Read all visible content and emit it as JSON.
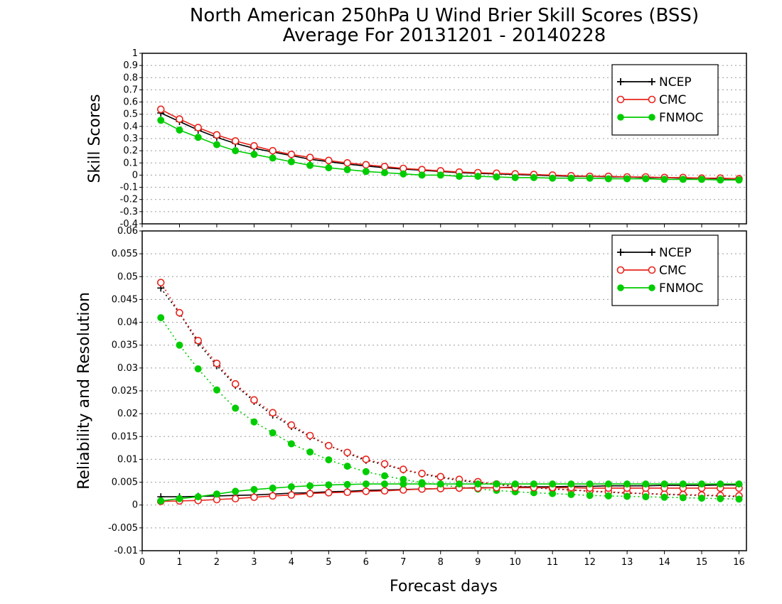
{
  "title_line1": "North American 250hPa U Wind Brier Skill Scores (BSS)",
  "title_line2": "Average For 20131201 - 20140228",
  "xlabel": "Forecast days",
  "x_ticks": [
    "0",
    "1",
    "2",
    "3",
    "4",
    "5",
    "6",
    "7",
    "8",
    "9",
    "10",
    "11",
    "12",
    "13",
    "14",
    "15",
    "16"
  ],
  "colors": {
    "NCEP": "#000000",
    "CMC": "#e8241c",
    "FNMOC": "#00cc00"
  },
  "chart_data": [
    {
      "type": "line",
      "ylabel": "Skill Scores",
      "xlim": [
        0,
        16.2
      ],
      "ylim": [
        -0.4,
        1
      ],
      "y_ticks": [
        "-0.4",
        "-0.3",
        "-0.2",
        "-0.1",
        "0",
        "0.1",
        "0.2",
        "0.3",
        "0.4",
        "0.5",
        "0.6",
        "0.7",
        "0.8",
        "0.9",
        "1"
      ],
      "grid": true,
      "legend_position": "top-right",
      "legend": [
        "NCEP",
        "CMC",
        "FNMOC"
      ],
      "x": [
        0.5,
        1,
        1.5,
        2,
        2.5,
        3,
        3.5,
        4,
        4.5,
        5,
        5.5,
        6,
        6.5,
        7,
        7.5,
        8,
        8.5,
        9,
        9.5,
        10,
        10.5,
        11,
        11.5,
        12,
        12.5,
        13,
        13.5,
        14,
        14.5,
        15,
        15.5,
        16
      ],
      "series": [
        {
          "name": "NCEP",
          "marker": "plus",
          "values": [
            0.51,
            0.44,
            0.37,
            0.31,
            0.26,
            0.22,
            0.19,
            0.16,
            0.13,
            0.11,
            0.09,
            0.075,
            0.06,
            0.05,
            0.04,
            0.03,
            0.02,
            0.015,
            0.01,
            0.005,
            0,
            -0.005,
            -0.01,
            -0.01,
            -0.015,
            -0.015,
            -0.02,
            -0.02,
            -0.025,
            -0.025,
            -0.03,
            -0.03
          ]
        },
        {
          "name": "CMC",
          "marker": "open-circle",
          "values": [
            0.54,
            0.46,
            0.39,
            0.33,
            0.28,
            0.24,
            0.2,
            0.17,
            0.145,
            0.12,
            0.1,
            0.085,
            0.07,
            0.055,
            0.045,
            0.035,
            0.025,
            0.02,
            0.015,
            0.01,
            0.005,
            0,
            -0.005,
            -0.01,
            -0.01,
            -0.015,
            -0.015,
            -0.02,
            -0.02,
            -0.025,
            -0.025,
            -0.03
          ]
        },
        {
          "name": "FNMOC",
          "marker": "filled-circle",
          "values": [
            0.45,
            0.37,
            0.31,
            0.25,
            0.2,
            0.17,
            0.14,
            0.11,
            0.08,
            0.06,
            0.045,
            0.03,
            0.02,
            0.01,
            0,
            0,
            -0.01,
            -0.01,
            -0.015,
            -0.02,
            -0.02,
            -0.025,
            -0.025,
            -0.025,
            -0.03,
            -0.03,
            -0.03,
            -0.035,
            -0.035,
            -0.035,
            -0.04,
            -0.04
          ]
        }
      ]
    },
    {
      "type": "line",
      "ylabel": "Reliability and Resolution",
      "xlim": [
        0,
        16.2
      ],
      "ylim": [
        -0.01,
        0.06
      ],
      "y_ticks": [
        "-0.01",
        "-0.005",
        "0",
        "0.005",
        "0.01",
        "0.015",
        "0.02",
        "0.025",
        "0.03",
        "0.035",
        "0.04",
        "0.045",
        "0.05",
        "0.055",
        "0.06"
      ],
      "grid": true,
      "legend_position": "top-right",
      "legend": [
        "NCEP",
        "CMC",
        "FNMOC"
      ],
      "x": [
        0.5,
        1,
        1.5,
        2,
        2.5,
        3,
        3.5,
        4,
        4.5,
        5,
        5.5,
        6,
        6.5,
        7,
        7.5,
        8,
        8.5,
        9,
        9.5,
        10,
        10.5,
        11,
        11.5,
        12,
        12.5,
        13,
        13.5,
        14,
        14.5,
        15,
        15.5,
        16
      ],
      "series": [
        {
          "name": "NCEP",
          "marker": "plus",
          "style": "dotted",
          "values": [
            0.0475,
            0.042,
            0.0355,
            0.0305,
            0.0262,
            0.0227,
            0.0197,
            0.0172,
            0.015,
            0.013,
            0.0113,
            0.0098,
            0.0088,
            0.0077,
            0.0068,
            0.006,
            0.0054,
            0.0049,
            0.0045,
            0.0041,
            0.0038,
            0.0035,
            0.0033,
            0.003,
            0.0028,
            0.0026,
            0.0025,
            0.0023,
            0.0022,
            0.0021,
            0.002,
            0.0018
          ]
        },
        {
          "name": "CMC",
          "marker": "open-circle",
          "style": "dotted",
          "values": [
            0.0487,
            0.0421,
            0.036,
            0.031,
            0.0265,
            0.023,
            0.0202,
            0.0175,
            0.0152,
            0.013,
            0.0115,
            0.01,
            0.009,
            0.0078,
            0.0069,
            0.0062,
            0.0056,
            0.0051,
            0.0046,
            0.0042,
            0.0039,
            0.0036,
            0.0033,
            0.0031,
            0.0029,
            0.0027,
            0.0025,
            0.0024,
            0.0023,
            0.0022,
            0.0021,
            0.002
          ]
        },
        {
          "name": "FNMOC",
          "marker": "filled-circle",
          "style": "dotted",
          "values": [
            0.041,
            0.035,
            0.0298,
            0.0252,
            0.0212,
            0.0182,
            0.0158,
            0.0134,
            0.0116,
            0.0099,
            0.0085,
            0.0073,
            0.0064,
            0.0056,
            0.0049,
            0.0044,
            0.0039,
            0.0035,
            0.0032,
            0.0029,
            0.0027,
            0.0025,
            0.0023,
            0.0021,
            0.002,
            0.0019,
            0.0018,
            0.0017,
            0.0016,
            0.0015,
            0.0014,
            0.0013
          ]
        },
        {
          "name": "NCEP",
          "marker": "plus",
          "style": "solid",
          "values": [
            0.0018,
            0.0018,
            0.0019,
            0.002,
            0.0021,
            0.0022,
            0.0024,
            0.0026,
            0.0027,
            0.0029,
            0.003,
            0.0032,
            0.0033,
            0.0034,
            0.0035,
            0.0036,
            0.0037,
            0.0038,
            0.0038,
            0.0039,
            0.004,
            0.004,
            0.0041,
            0.0041,
            0.0042,
            0.0042,
            0.0042,
            0.0043,
            0.0043,
            0.0043,
            0.0044,
            0.0044
          ]
        },
        {
          "name": "CMC",
          "marker": "open-circle",
          "style": "solid",
          "values": [
            0.0008,
            0.0009,
            0.001,
            0.0012,
            0.0014,
            0.0017,
            0.002,
            0.0022,
            0.0025,
            0.0027,
            0.0028,
            0.003,
            0.0031,
            0.0033,
            0.0035,
            0.0036,
            0.0037,
            0.0037,
            0.0038,
            0.0038,
            0.0038,
            0.0038,
            0.0038,
            0.0037,
            0.0037,
            0.0037,
            0.0037,
            0.0037,
            0.0037,
            0.0037,
            0.0037,
            0.0037
          ]
        },
        {
          "name": "FNMOC",
          "marker": "filled-circle",
          "style": "solid",
          "values": [
            0.0009,
            0.0014,
            0.0018,
            0.0024,
            0.003,
            0.0034,
            0.0037,
            0.004,
            0.0042,
            0.0044,
            0.0045,
            0.0046,
            0.0046,
            0.0046,
            0.0046,
            0.0046,
            0.0046,
            0.0046,
            0.0046,
            0.0046,
            0.0046,
            0.0046,
            0.0046,
            0.0046,
            0.0046,
            0.0046,
            0.0046,
            0.0046,
            0.0046,
            0.0046,
            0.0046,
            0.0046
          ]
        }
      ]
    }
  ]
}
